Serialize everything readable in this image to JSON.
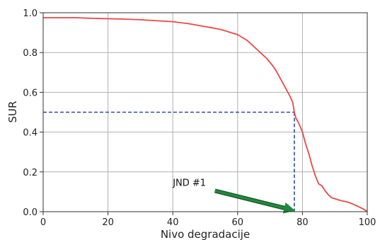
{
  "chart_data": {
    "type": "line",
    "title": "",
    "xlabel": "Nivo degradacije",
    "ylabel": "SUR",
    "xlim": [
      0,
      100
    ],
    "ylim": [
      0,
      1.0
    ],
    "grid": true,
    "x_ticks": [
      "0",
      "20",
      "40",
      "60",
      "80",
      "100"
    ],
    "y_ticks": [
      "0.0",
      "0.2",
      "0.4",
      "0.6",
      "0.8",
      "1.0"
    ],
    "series": [
      {
        "color": "#e8484a",
        "x": [
          0,
          5,
          10,
          15,
          20,
          25,
          30,
          35,
          40,
          45,
          50,
          52,
          55,
          58,
          60,
          62,
          63,
          64,
          65,
          66,
          67,
          68,
          69,
          70,
          71,
          72,
          73,
          74,
          75,
          76,
          77,
          77.5,
          78,
          79,
          80,
          81,
          82,
          83,
          84,
          85,
          86,
          87,
          88,
          89,
          90,
          91,
          92,
          93,
          94,
          95,
          96,
          97,
          98,
          99,
          100
        ],
        "y": [
          0.975,
          0.975,
          0.975,
          0.972,
          0.97,
          0.968,
          0.965,
          0.96,
          0.955,
          0.945,
          0.93,
          0.925,
          0.915,
          0.9,
          0.89,
          0.87,
          0.86,
          0.845,
          0.83,
          0.815,
          0.8,
          0.785,
          0.77,
          0.75,
          0.73,
          0.705,
          0.675,
          0.645,
          0.615,
          0.585,
          0.55,
          0.5,
          0.47,
          0.44,
          0.4,
          0.34,
          0.29,
          0.23,
          0.18,
          0.14,
          0.13,
          0.105,
          0.085,
          0.07,
          0.065,
          0.06,
          0.055,
          0.052,
          0.048,
          0.042,
          0.035,
          0.028,
          0.02,
          0.012,
          0.0
        ]
      }
    ],
    "threshold": {
      "x": 77.5,
      "y": 0.5,
      "color": "#2b4ba0"
    },
    "annotation": {
      "text": "JND #1",
      "arrow_color": "#1e8a3a",
      "text_at": [
        40,
        0.13
      ],
      "arrow_from": [
        53,
        0.105
      ],
      "arrow_to": [
        76.5,
        0.01
      ]
    }
  }
}
